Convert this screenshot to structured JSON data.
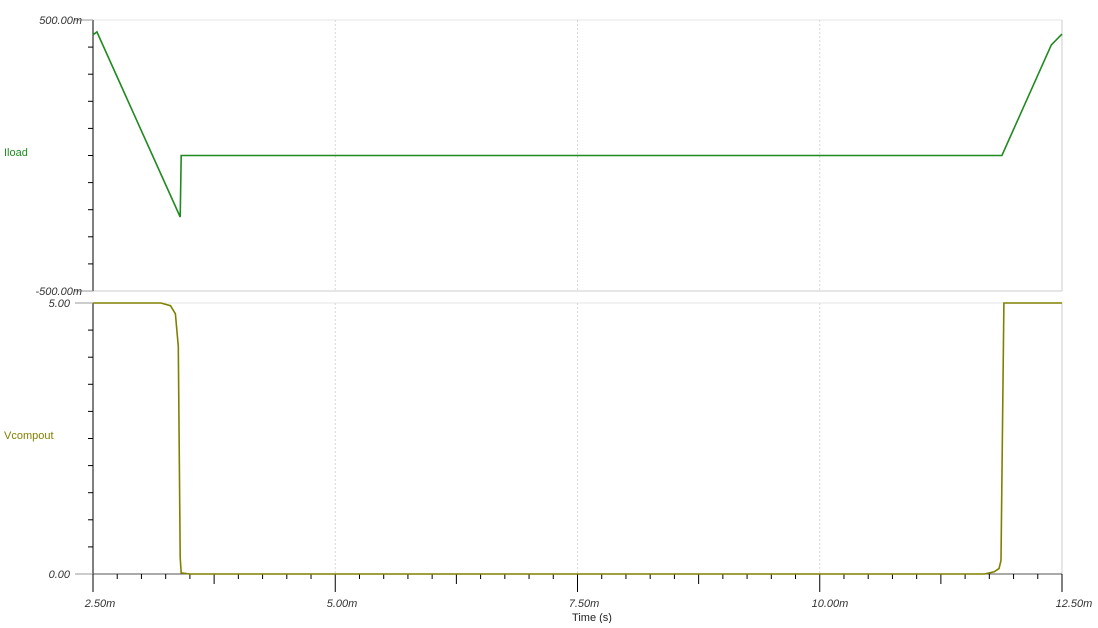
{
  "chart_data": [
    {
      "type": "line",
      "ylabel": "Iload",
      "ylim": [
        -0.5,
        0.5
      ],
      "ytick_labels": [
        "500.00m",
        "-500.00m"
      ],
      "xlim": [
        0.0025,
        0.0125
      ],
      "grid": true,
      "color": "#1f8a1f",
      "series": [
        {
          "name": "Iload",
          "x": [
            0.0025,
            0.00254,
            0.0034,
            0.00341,
            0.01188,
            0.01239,
            0.0125
          ],
          "y": [
            0.445,
            0.456,
            -0.227,
            0.0,
            0.0,
            0.408,
            0.448
          ]
        }
      ]
    },
    {
      "type": "line",
      "ylabel": "Vcompout",
      "ylim": [
        0,
        5
      ],
      "ytick_labels": [
        "5.00",
        "0.00"
      ],
      "xlim": [
        0.0025,
        0.0125
      ],
      "xlabel": "Time (s)",
      "xtick_labels": [
        "2.50m",
        "5.00m",
        "7.50m",
        "10.00m",
        "12.50m"
      ],
      "xticks": [
        0.0025,
        0.005,
        0.0075,
        0.01,
        0.0125
      ],
      "grid": true,
      "color": "#808000",
      "series": [
        {
          "name": "Vcompout",
          "x": [
            0.0025,
            0.0032,
            0.0033,
            0.00335,
            0.00338,
            0.0034,
            0.00341,
            0.0035,
            0.0117,
            0.0118,
            0.01185,
            0.01187,
            0.0119,
            0.0125
          ],
          "y": [
            5.0,
            5.0,
            4.95,
            4.8,
            4.2,
            0.3,
            0.02,
            0.0,
            0.0,
            0.04,
            0.1,
            0.25,
            5.0,
            5.0
          ]
        }
      ]
    }
  ]
}
